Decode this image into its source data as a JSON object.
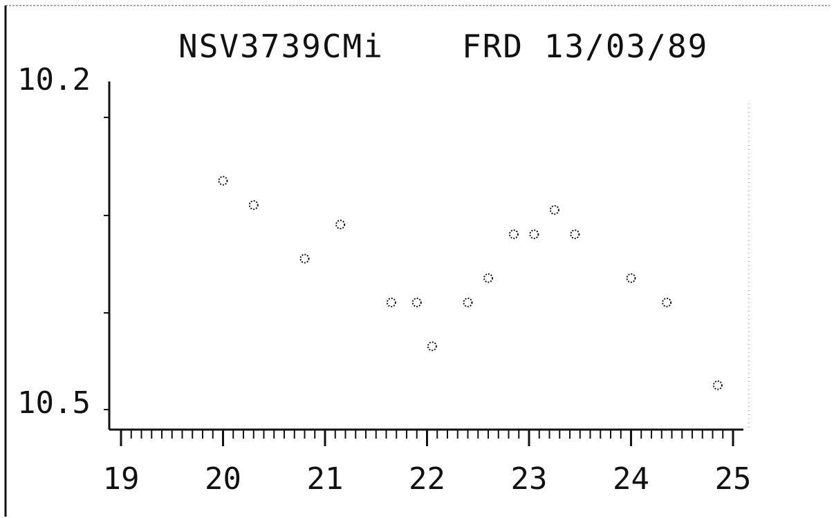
{
  "header": {
    "star_name": "NSV3739CMi",
    "observer_date": "FRD 13/03/89"
  },
  "chart_data": {
    "type": "scatter",
    "title": "",
    "xlabel": "",
    "ylabel": "",
    "xlim": [
      19,
      25
    ],
    "ylim": [
      10.2,
      10.5
    ],
    "y_inverted": true,
    "y_tick_labels": [
      "10.2",
      "10.5"
    ],
    "x_tick_labels": [
      "19",
      "20",
      "21",
      "22",
      "23",
      "24",
      "25"
    ],
    "grid": false,
    "points": [
      {
        "x": 20.0,
        "y": 10.265
      },
      {
        "x": 20.3,
        "y": 10.29
      },
      {
        "x": 20.8,
        "y": 10.345
      },
      {
        "x": 21.15,
        "y": 10.31
      },
      {
        "x": 21.65,
        "y": 10.39
      },
      {
        "x": 21.9,
        "y": 10.39
      },
      {
        "x": 22.05,
        "y": 10.435
      },
      {
        "x": 22.4,
        "y": 10.39
      },
      {
        "x": 22.6,
        "y": 10.365
      },
      {
        "x": 22.85,
        "y": 10.32
      },
      {
        "x": 23.05,
        "y": 10.32
      },
      {
        "x": 23.25,
        "y": 10.295
      },
      {
        "x": 23.45,
        "y": 10.32
      },
      {
        "x": 24.0,
        "y": 10.365
      },
      {
        "x": 24.35,
        "y": 10.39
      },
      {
        "x": 24.85,
        "y": 10.475
      }
    ]
  }
}
